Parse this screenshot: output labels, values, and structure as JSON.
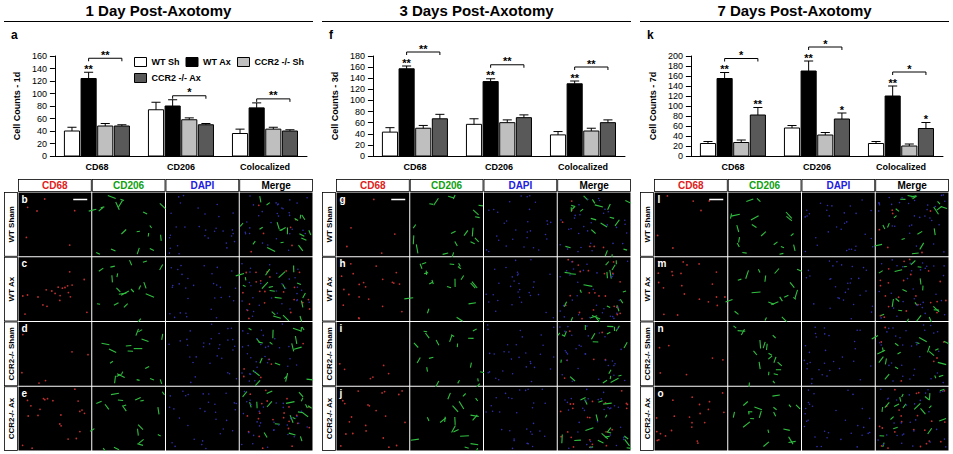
{
  "chart_data": [
    {
      "type": "bar",
      "title": "1 Day Post-Axotomy",
      "panel_label": "a",
      "ylabel": "Cell Counts - 1d",
      "categories": [
        "CD68",
        "CD206",
        "Colocalized"
      ],
      "ylim": [
        0,
        160
      ],
      "yticks": [
        0,
        20,
        40,
        60,
        80,
        100,
        120,
        140,
        160
      ],
      "grid": false,
      "legend": "top-right",
      "series": [
        {
          "name": "WT Sh",
          "color": "#ffffff",
          "values": [
            40,
            74,
            36
          ],
          "errors": [
            6,
            12,
            7
          ]
        },
        {
          "name": "WT Ax",
          "color": "#000000",
          "values": [
            124,
            80,
            77
          ],
          "errors": [
            10,
            10,
            8
          ]
        },
        {
          "name": "CCR2 -/- Sh",
          "color": "#bfbfbf",
          "values": [
            48,
            58,
            43
          ],
          "errors": [
            4,
            3,
            3
          ]
        },
        {
          "name": "CCR2 -/- Ax",
          "color": "#595959",
          "values": [
            48,
            50,
            40
          ],
          "errors": [
            2,
            2,
            2
          ]
        }
      ],
      "annotations": [
        {
          "category": "CD68",
          "series": "WT Ax",
          "text": "**"
        },
        {
          "category": "CD68",
          "from": "WT Ax",
          "to": "CCR2 -/- Ax",
          "text": "**"
        },
        {
          "category": "CD206",
          "from": "WT Ax",
          "to": "CCR2 -/- Ax",
          "text": "*"
        },
        {
          "category": "Colocalized",
          "from": "WT Ax",
          "to": "CCR2 -/- Ax",
          "text": "**"
        }
      ]
    },
    {
      "type": "bar",
      "title": "3 Days Post-Axotomy",
      "panel_label": "f",
      "ylabel": "Cell Counts - 3d",
      "categories": [
        "CD68",
        "CD206",
        "Colocalized"
      ],
      "ylim": [
        0,
        180
      ],
      "yticks": [
        0,
        20,
        40,
        60,
        80,
        100,
        120,
        140,
        160,
        180
      ],
      "grid": false,
      "series": [
        {
          "name": "WT Sh",
          "color": "#ffffff",
          "values": [
            43,
            57,
            38
          ],
          "errors": [
            8,
            10,
            6
          ]
        },
        {
          "name": "WT Ax",
          "color": "#000000",
          "values": [
            157,
            134,
            130
          ],
          "errors": [
            5,
            5,
            5
          ]
        },
        {
          "name": "CCR2 -/- Sh",
          "color": "#bfbfbf",
          "values": [
            50,
            60,
            45
          ],
          "errors": [
            5,
            5,
            5
          ]
        },
        {
          "name": "CCR2 -/- Ax",
          "color": "#595959",
          "values": [
            67,
            69,
            60
          ],
          "errors": [
            8,
            5,
            5
          ]
        }
      ],
      "annotations": [
        {
          "category": "CD68",
          "series": "WT Ax",
          "text": "**"
        },
        {
          "category": "CD206",
          "series": "WT Ax",
          "text": "**"
        },
        {
          "category": "Colocalized",
          "series": "WT Ax",
          "text": "**"
        },
        {
          "category": "CD68",
          "from": "WT Ax",
          "to": "CCR2 -/- Ax",
          "text": "**"
        },
        {
          "category": "CD206",
          "from": "WT Ax",
          "to": "CCR2 -/- Ax",
          "text": "**"
        },
        {
          "category": "Colocalized",
          "from": "WT Ax",
          "to": "CCR2 -/- Ax",
          "text": "**"
        }
      ]
    },
    {
      "type": "bar",
      "title": "7 Days Post-Axotomy",
      "panel_label": "k",
      "ylabel": "Cell Counts - 7d",
      "categories": [
        "CD68",
        "CD206",
        "Colocalized"
      ],
      "ylim": [
        0,
        200
      ],
      "yticks": [
        0,
        20,
        40,
        60,
        80,
        100,
        120,
        140,
        160,
        180,
        200
      ],
      "grid": false,
      "series": [
        {
          "name": "WT Sh",
          "color": "#ffffff",
          "values": [
            25,
            56,
            25
          ],
          "errors": [
            4,
            5,
            4
          ]
        },
        {
          "name": "WT Ax",
          "color": "#000000",
          "values": [
            155,
            170,
            120
          ],
          "errors": [
            12,
            20,
            20
          ]
        },
        {
          "name": "CCR2 -/- Sh",
          "color": "#bfbfbf",
          "values": [
            27,
            42,
            20
          ],
          "errors": [
            5,
            5,
            4
          ]
        },
        {
          "name": "CCR2 -/- Ax",
          "color": "#595959",
          "values": [
            82,
            74,
            55
          ],
          "errors": [
            15,
            12,
            12
          ]
        }
      ],
      "annotations": [
        {
          "category": "CD68",
          "series": "WT Ax",
          "text": "**"
        },
        {
          "category": "CD206",
          "series": "WT Ax",
          "text": "**"
        },
        {
          "category": "Colocalized",
          "series": "WT Ax",
          "text": "**"
        },
        {
          "category": "CD68",
          "series": "CCR2 -/- Ax",
          "text": "**"
        },
        {
          "category": "CD206",
          "series": "CCR2 -/- Ax",
          "text": "*"
        },
        {
          "category": "Colocalized",
          "series": "CCR2 -/- Ax",
          "text": "*"
        },
        {
          "category": "CD68",
          "from": "WT Ax",
          "to": "CCR2 -/- Ax",
          "text": "*"
        },
        {
          "category": "CD206",
          "from": "WT Ax",
          "to": "CCR2 -/- Ax",
          "text": "*"
        },
        {
          "category": "Colocalized",
          "from": "WT Ax",
          "to": "CCR2 -/- Ax",
          "text": "*"
        }
      ]
    }
  ],
  "image_panels": [
    {
      "panel_labels": [
        "b",
        "c",
        "d",
        "e"
      ],
      "columns": [
        {
          "text": "CD68",
          "color": "#e02020"
        },
        {
          "text": "CD206",
          "color": "#10a010"
        },
        {
          "text": "DAPI",
          "color": "#2020e0"
        },
        {
          "text": "Merge",
          "color": "#000000"
        }
      ],
      "rows": [
        "WT Sham",
        "WT Ax",
        "CCR2-/- Sham",
        "CCR2-/- Ax"
      ]
    },
    {
      "panel_labels": [
        "g",
        "h",
        "i",
        "j"
      ],
      "columns": [
        {
          "text": "CD68",
          "color": "#e02020"
        },
        {
          "text": "CD206",
          "color": "#10a010"
        },
        {
          "text": "DAPI",
          "color": "#2020e0"
        },
        {
          "text": "Merge",
          "color": "#000000"
        }
      ],
      "rows": [
        "WT Sham",
        "WT Ax",
        "CCR2-/- Sham",
        "CCR2-/- Ax"
      ]
    },
    {
      "panel_labels": [
        "l",
        "m",
        "n",
        "o"
      ],
      "columns": [
        {
          "text": "CD68",
          "color": "#e02020"
        },
        {
          "text": "CD206",
          "color": "#10a010"
        },
        {
          "text": "DAPI",
          "color": "#2020e0"
        },
        {
          "text": "Merge",
          "color": "#000000"
        }
      ],
      "rows": [
        "WT Sham",
        "WT Ax",
        "CCR2-/- Sham",
        "CCR2-/- Ax"
      ]
    }
  ]
}
